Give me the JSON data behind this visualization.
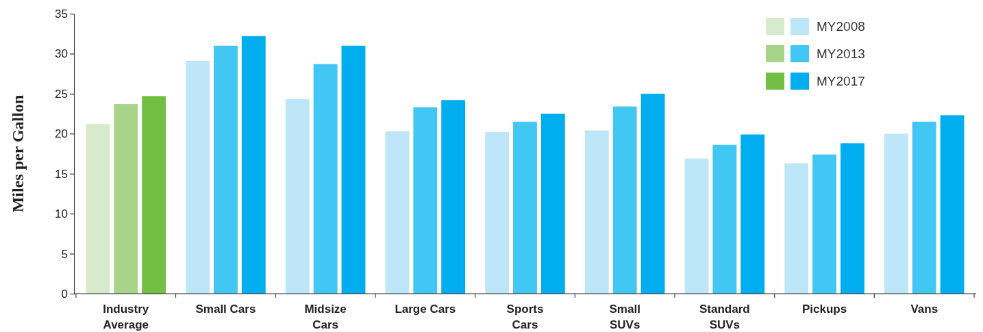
{
  "chart_data": {
    "type": "bar",
    "ylabel": "Miles per Gallon",
    "categories": [
      "Industry\nAverage",
      "Small Cars",
      "Midsize\nCars",
      "Large Cars",
      "Sports\nCars",
      "Small\nSUVs",
      "Standard\nSUVs",
      "Pickups",
      "Vans"
    ],
    "series": [
      {
        "name": "MY2008",
        "color": "#bde6f9",
        "colors": [
          "#d7eacb",
          "#bde6f9",
          "#bde6f9",
          "#bde6f9",
          "#bde6f9",
          "#bde6f9",
          "#bde6f9",
          "#bde6f9",
          "#bde6f9"
        ],
        "values": [
          21.2,
          29.1,
          24.3,
          20.3,
          20.2,
          20.4,
          16.9,
          16.3,
          20.0
        ]
      },
      {
        "name": "MY2013",
        "color": "#42c6f4",
        "colors": [
          "#a8d48a",
          "#42c6f4",
          "#42c6f4",
          "#42c6f4",
          "#42c6f4",
          "#42c6f4",
          "#42c6f4",
          "#42c6f4",
          "#42c6f4"
        ],
        "values": [
          23.7,
          31.0,
          28.7,
          23.3,
          21.5,
          23.4,
          18.6,
          17.4,
          21.5
        ]
      },
      {
        "name": "MY2017",
        "color": "#00adee",
        "colors": [
          "#72bf44",
          "#00adee",
          "#00adee",
          "#00adee",
          "#00adee",
          "#00adee",
          "#00adee",
          "#00adee",
          "#00adee"
        ],
        "values": [
          24.7,
          32.2,
          31.0,
          24.2,
          22.5,
          25.0,
          19.9,
          18.8,
          22.3
        ]
      }
    ],
    "ylim": [
      0,
      35
    ],
    "yticks": [
      0,
      5,
      10,
      15,
      20,
      25,
      30,
      35
    ],
    "legend": "top right"
  }
}
